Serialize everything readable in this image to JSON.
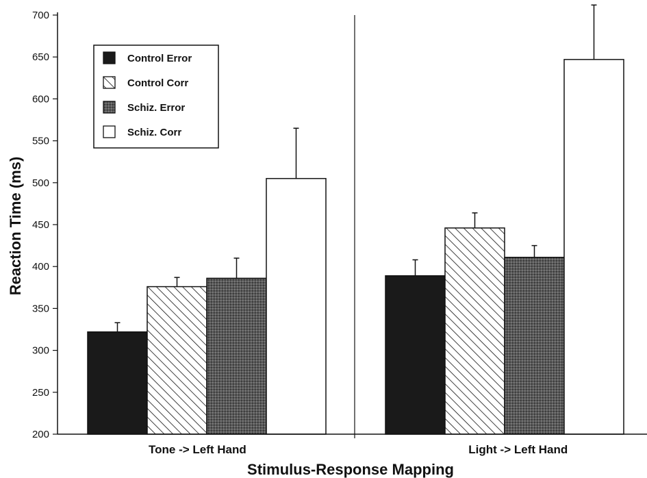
{
  "chart_data": {
    "type": "bar",
    "title": "",
    "xlabel": "Stimulus-Response Mapping",
    "ylabel": "Reaction Time (ms)",
    "ylim": [
      200,
      700
    ],
    "yticks": [
      200,
      250,
      300,
      350,
      400,
      450,
      500,
      550,
      600,
      650,
      700
    ],
    "categories": [
      "Tone -> Left Hand",
      "Light -> Left Hand"
    ],
    "series": [
      {
        "name": "Control Error",
        "values": [
          322,
          389
        ],
        "errors": [
          11,
          19
        ],
        "color": "#1a1a1a",
        "pattern": "solid-black"
      },
      {
        "name": "Control Corr",
        "values": [
          376,
          446
        ],
        "errors": [
          11,
          18
        ],
        "color": "#ffffff",
        "pattern": "hatch"
      },
      {
        "name": "Schiz. Error",
        "values": [
          386,
          411
        ],
        "errors": [
          24,
          14
        ],
        "color": "#555555",
        "pattern": "stipple"
      },
      {
        "name": "Schiz. Corr",
        "values": [
          505,
          647
        ],
        "errors": [
          60,
          65
        ],
        "color": "#ffffff",
        "pattern": "open"
      }
    ],
    "legend": "top-left",
    "grid": false
  }
}
